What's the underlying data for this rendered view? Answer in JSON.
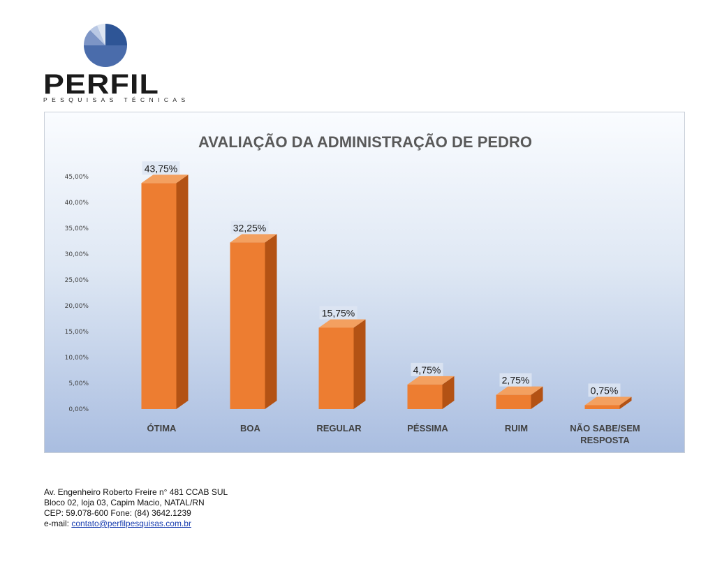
{
  "logo": {
    "name": "PERFIL",
    "subtitle": "PESQUISAS TÉCNICAS",
    "colors": [
      "#2e5596",
      "#7d95c6",
      "#b9c8e4",
      "#dde5f2"
    ]
  },
  "chart_data": {
    "type": "bar",
    "title": "AVALIAÇÃO DA ADMINISTRAÇÃO DE PEDRO",
    "categories": [
      "ÓTIMA",
      "BOA",
      "REGULAR",
      "PÉSSIMA",
      "RUIM",
      "NÃO SABE/SEM RESPOSTA"
    ],
    "category_lines": [
      [
        "ÓTIMA"
      ],
      [
        "BOA"
      ],
      [
        "REGULAR"
      ],
      [
        "PÉSSIMA"
      ],
      [
        "RUIM"
      ],
      [
        "NÃO SABE/SEM",
        "RESPOSTA"
      ]
    ],
    "values": [
      43.75,
      32.25,
      15.75,
      4.75,
      2.75,
      0.75
    ],
    "data_labels": [
      "43,75%",
      "32,25%",
      "15,75%",
      "4,75%",
      "2,75%",
      "0,75%"
    ],
    "ylim": [
      0,
      45
    ],
    "yticks": [
      0,
      5,
      10,
      15,
      20,
      25,
      30,
      35,
      40,
      45
    ],
    "ytick_labels": [
      "0,00%",
      "5,00%",
      "10,00%",
      "15,00%",
      "20,00%",
      "25,00%",
      "30,00%",
      "35,00%",
      "40,00%",
      "45,00%"
    ],
    "xlabel": "",
    "ylabel": "",
    "grid": false,
    "bar_style": "3d",
    "colors": {
      "front": "#ed7d31",
      "side": "#b35214",
      "top": "#f3a060"
    }
  },
  "footer": {
    "line1": "Av. Engenheiro Roberto Freire n° 481 CCAB SUL",
    "line2": "Bloco 02, loja 03, Capim Macio, NATAL/RN",
    "line3": "CEP: 59.078-600 Fone: (84) 3642.1239",
    "email_label": "e-mail: ",
    "email": "contato@perfilpesquisas.com.br"
  }
}
